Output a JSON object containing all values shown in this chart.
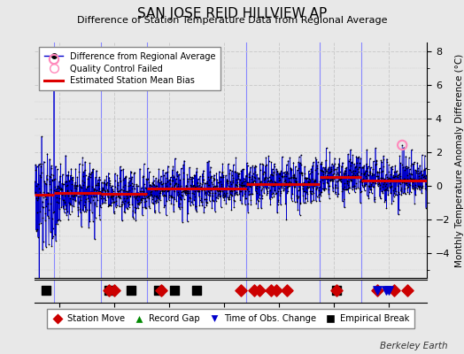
{
  "title": "SAN JOSE REID HILLVIEW AP",
  "subtitle": "Difference of Station Temperature Data from Regional Average",
  "ylabel": "Monthly Temperature Anomaly Difference (°C)",
  "xlabel_note": "Berkeley Earth",
  "xlim": [
    1871,
    2014
  ],
  "background_color": "#e8e8e8",
  "grid_color": "#d0d0d0",
  "vertical_lines": [
    1878,
    1895,
    1912,
    1948,
    1975,
    1990
  ],
  "station_moves": [
    1898,
    1900,
    1917,
    1946,
    1951,
    1953,
    1957,
    1959,
    1963,
    1981,
    1996,
    2002,
    2007
  ],
  "empirical_breaks": [
    1875,
    1898,
    1906,
    1916,
    1922,
    1930,
    1981
  ],
  "obs_changes": [
    1996,
    1999,
    2000
  ],
  "record_gaps": [],
  "qc_failed_years": [
    1878.0,
    2005.0
  ],
  "qc_failed_values": [
    7.5,
    2.4
  ],
  "bias_segments": [
    {
      "x": [
        1871,
        1878
      ],
      "y": [
        -0.55,
        -0.55
      ]
    },
    {
      "x": [
        1878,
        1895
      ],
      "y": [
        -0.45,
        -0.45
      ]
    },
    {
      "x": [
        1895,
        1912
      ],
      "y": [
        -0.5,
        -0.5
      ]
    },
    {
      "x": [
        1912,
        1948
      ],
      "y": [
        -0.2,
        -0.2
      ]
    },
    {
      "x": [
        1948,
        1975
      ],
      "y": [
        0.1,
        0.1
      ]
    },
    {
      "x": [
        1975,
        1990
      ],
      "y": [
        0.5,
        0.5
      ]
    },
    {
      "x": [
        1990,
        2014
      ],
      "y": [
        0.3,
        0.3
      ]
    }
  ],
  "seed": 42,
  "line_color": "#0000cc",
  "marker_color": "#000000",
  "bias_color": "#dd0000",
  "qc_color": "#ff88bb",
  "station_move_color": "#cc0000",
  "obs_change_color": "#0000cc",
  "empirical_break_color": "#000000",
  "record_gap_color": "#008800",
  "yticks": [
    -4,
    -2,
    0,
    2,
    4,
    6,
    8
  ],
  "xticks": [
    1880,
    1900,
    1920,
    1940,
    1960,
    1980,
    2000
  ],
  "ylim": [
    -5.5,
    8.5
  ]
}
